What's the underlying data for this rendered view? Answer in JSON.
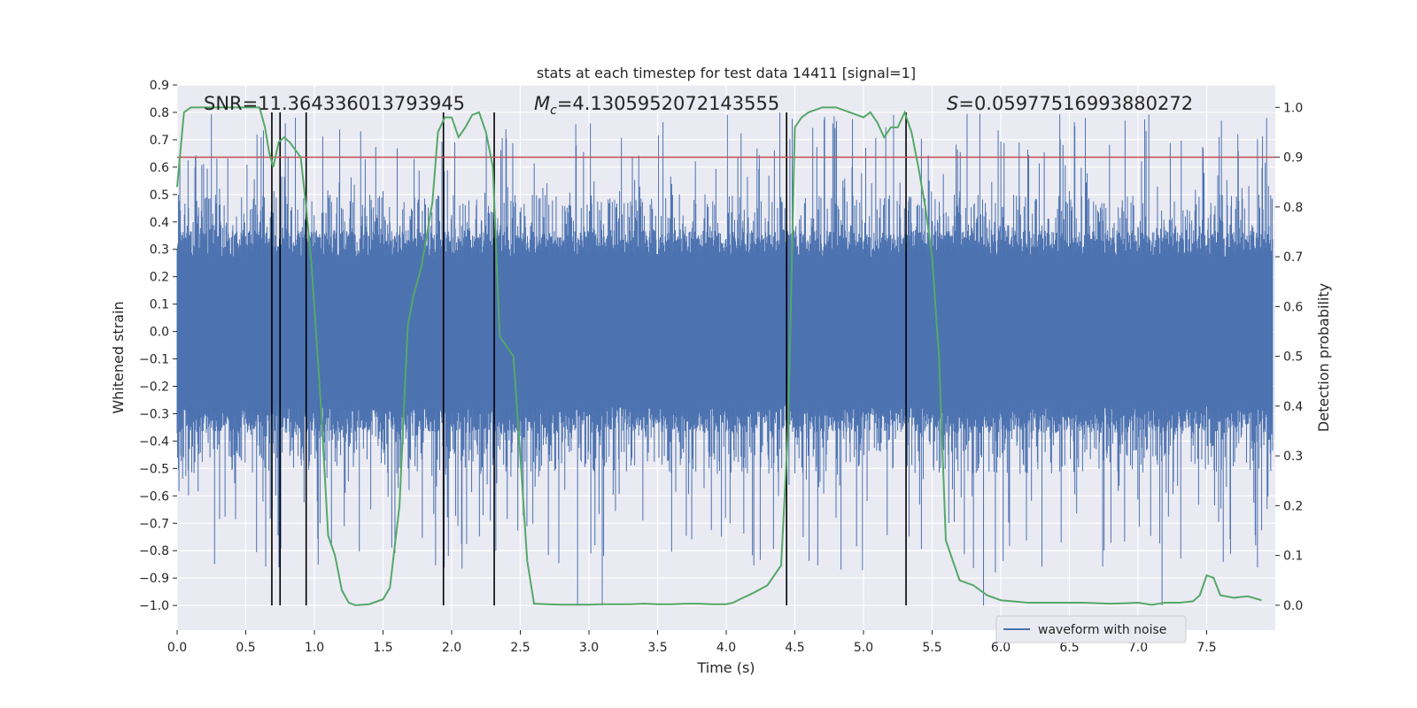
{
  "chart_data": {
    "type": "line",
    "title": "stats at each timestep for test data 14411 [signal=1]",
    "xlabel": "Time (s)",
    "ylabel_left": "Whitened strain",
    "ylabel_right": "Detection probability",
    "xlim": [
      0.0,
      8.0
    ],
    "ylim_left": [
      -1.09,
      0.9
    ],
    "ylim_right": [
      -0.05,
      1.045
    ],
    "x_ticks": [
      "0.0",
      "0.5",
      "1.0",
      "1.5",
      "2.0",
      "2.5",
      "3.0",
      "3.5",
      "4.0",
      "4.5",
      "5.0",
      "5.5",
      "6.0",
      "6.5",
      "7.0",
      "7.5"
    ],
    "y_left_ticks": [
      "0.9",
      "0.8",
      "0.7",
      "0.6",
      "0.5",
      "0.4",
      "0.3",
      "0.2",
      "0.1",
      "0.0",
      "−0.1",
      "−0.2",
      "−0.3",
      "−0.4",
      "−0.5",
      "−0.6",
      "−0.7",
      "−0.8",
      "−0.9",
      "−1.0"
    ],
    "y_right_ticks": [
      "1.0",
      "0.9",
      "0.8",
      "0.7",
      "0.6",
      "0.5",
      "0.4",
      "0.3",
      "0.2",
      "0.1",
      "0.0"
    ],
    "grid": true,
    "legend_position": "lower-right",
    "colors": {
      "background": "#eaeaf2",
      "waveform": "#4c72b0",
      "probability": "#55a868",
      "threshold": "#c44e52",
      "events": "#000000"
    },
    "annotations": {
      "snr": "SNR=11.364336013793945",
      "mc_symbol": "M",
      "mc_subscript": "c",
      "mc_value": "=4.1305952072143555",
      "s_symbol": "S",
      "s_value": "=0.05977516993880272"
    },
    "series": [
      {
        "name": "waveform with noise",
        "axis": "left",
        "description_kind": "noise",
        "core_amplitude": 0.27,
        "typical_peak": 0.45,
        "max": 0.8,
        "min": -1.0
      },
      {
        "axis": "right",
        "x": [
          0.0,
          0.05,
          0.1,
          0.15,
          0.3,
          0.5,
          0.6,
          0.64,
          0.67,
          0.7,
          0.74,
          0.78,
          0.82,
          0.9,
          0.94,
          0.98,
          1.05,
          1.1,
          1.15,
          1.2,
          1.25,
          1.3,
          1.4,
          1.5,
          1.55,
          1.62,
          1.68,
          1.72,
          1.78,
          1.86,
          1.9,
          1.95,
          2.0,
          2.05,
          2.1,
          2.15,
          2.2,
          2.25,
          2.3,
          2.35,
          2.4,
          2.45,
          2.5,
          2.55,
          2.6,
          2.7,
          2.8,
          2.9,
          3.0,
          3.1,
          3.2,
          3.3,
          3.4,
          3.5,
          3.6,
          3.7,
          3.8,
          3.9,
          4.0,
          4.05,
          4.1,
          4.2,
          4.3,
          4.4,
          4.45,
          4.5,
          4.55,
          4.6,
          4.7,
          4.75,
          4.8,
          4.9,
          5.0,
          5.05,
          5.1,
          5.15,
          5.2,
          5.25,
          5.3,
          5.35,
          5.4,
          5.45,
          5.5,
          5.55,
          5.6,
          5.7,
          5.8,
          5.9,
          6.0,
          6.2,
          6.4,
          6.6,
          6.8,
          7.0,
          7.1,
          7.2,
          7.3,
          7.4,
          7.45,
          7.5,
          7.55,
          7.6,
          7.7,
          7.8,
          7.9
        ],
        "y": [
          0.84,
          0.99,
          1.0,
          1.0,
          1.0,
          1.0,
          1.0,
          0.96,
          0.91,
          0.88,
          0.93,
          0.94,
          0.93,
          0.9,
          0.8,
          0.68,
          0.39,
          0.14,
          0.1,
          0.03,
          0.005,
          0.0,
          0.002,
          0.012,
          0.035,
          0.2,
          0.56,
          0.62,
          0.68,
          0.81,
          0.95,
          0.98,
          0.98,
          0.94,
          0.96,
          0.985,
          0.99,
          0.95,
          0.88,
          0.54,
          0.52,
          0.5,
          0.3,
          0.09,
          0.003,
          0.002,
          0.001,
          0.001,
          0.001,
          0.002,
          0.002,
          0.002,
          0.003,
          0.002,
          0.002,
          0.003,
          0.003,
          0.002,
          0.002,
          0.005,
          0.012,
          0.025,
          0.04,
          0.08,
          0.35,
          0.96,
          0.98,
          0.99,
          1.0,
          1.0,
          1.0,
          0.99,
          0.98,
          0.99,
          0.97,
          0.94,
          0.96,
          0.96,
          0.99,
          0.95,
          0.88,
          0.8,
          0.7,
          0.5,
          0.13,
          0.05,
          0.04,
          0.02,
          0.01,
          0.005,
          0.005,
          0.005,
          0.003,
          0.005,
          0.001,
          0.005,
          0.005,
          0.008,
          0.02,
          0.06,
          0.055,
          0.02,
          0.015,
          0.018,
          0.01
        ]
      },
      {
        "axis": "right",
        "kind": "threshold",
        "y": 0.9
      }
    ],
    "event_lines_x": [
      0.69,
      0.75,
      0.94,
      1.94,
      2.31,
      4.44,
      5.31
    ],
    "event_lines_y_range": [
      -1.0,
      0.8
    ]
  }
}
